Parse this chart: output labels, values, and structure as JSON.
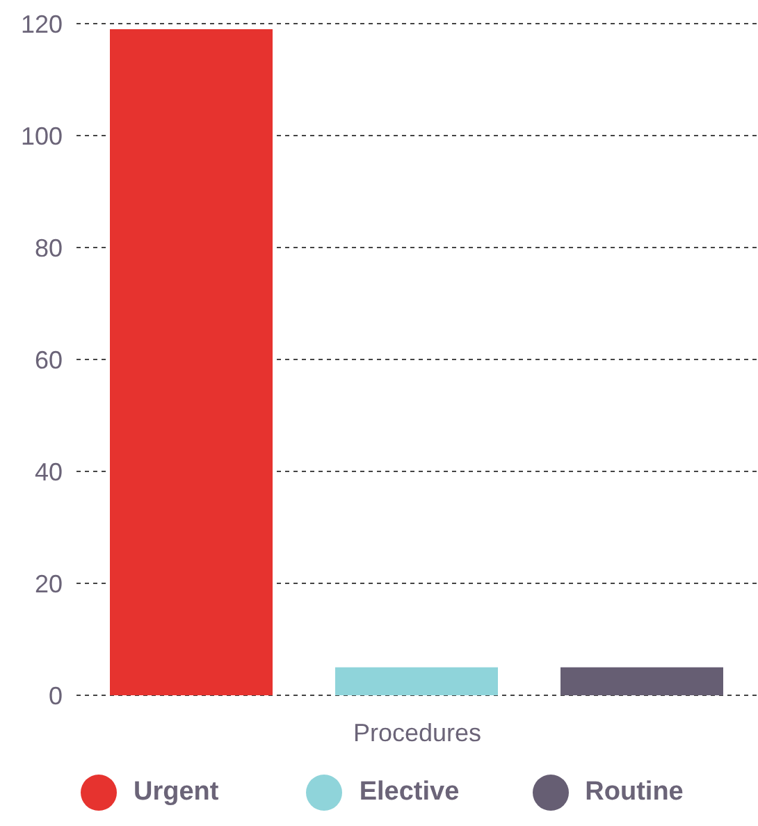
{
  "chart_data": {
    "type": "bar",
    "categories": [
      "Procedures"
    ],
    "series": [
      {
        "name": "Urgent",
        "color": "#e6332f",
        "values": [
          119
        ]
      },
      {
        "name": "Elective",
        "color": "#8fd4da",
        "values": [
          5
        ]
      },
      {
        "name": "Routine",
        "color": "#665e73",
        "values": [
          5
        ]
      }
    ],
    "ylim": [
      0,
      120
    ],
    "yticks": [
      0,
      20,
      40,
      60,
      80,
      100,
      120
    ],
    "grid": "y",
    "legend": "bottom"
  }
}
